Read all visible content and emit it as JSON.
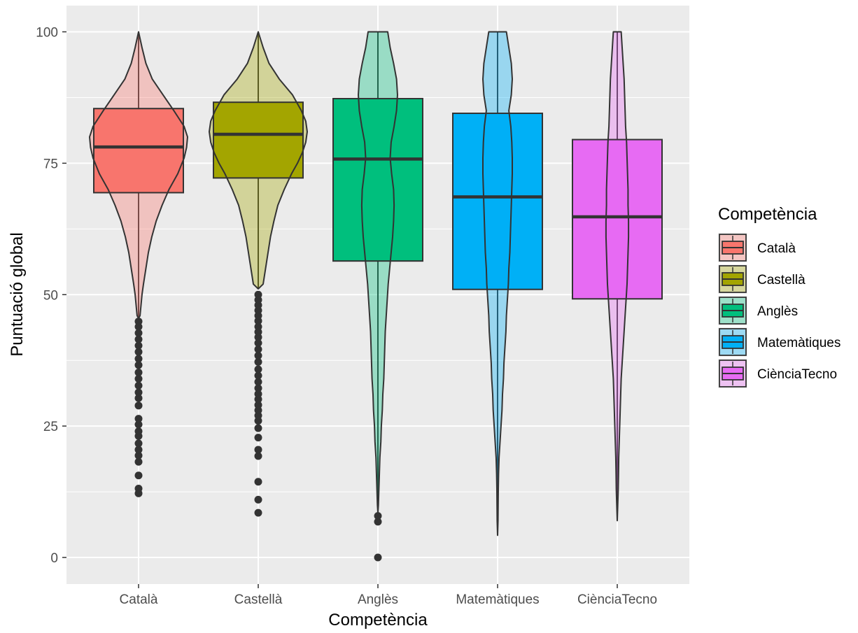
{
  "chart_data": {
    "type": "violin_boxplot",
    "xlabel": "Competència",
    "ylabel": "Puntuació global",
    "ylim": [
      -5,
      105
    ],
    "yticks": [
      0,
      25,
      50,
      75,
      100
    ],
    "ytick_labels": [
      "0",
      "25",
      "50",
      "75",
      "100"
    ],
    "grid": true,
    "legend": {
      "title": "Competència",
      "placement": "right",
      "entries": [
        "Català",
        "Castellà",
        "Anglès",
        "Matemàtiques",
        "CiènciaTecno"
      ]
    },
    "categories": [
      "Català",
      "Castellà",
      "Anglès",
      "Matemàtiques",
      "CiènciaTecno"
    ],
    "series": [
      {
        "name": "Català",
        "color": "#F8766D",
        "box": {
          "q1": 69.4,
          "median": 78.1,
          "q3": 85.4,
          "whisker_low": 45.5,
          "whisker_high": 100
        },
        "outliers": [
          12.2,
          13.1,
          15.6,
          18.2,
          19.4,
          20.5,
          21.7,
          23.1,
          24.0,
          25.3,
          26.4,
          28.9,
          30.3,
          31.4,
          32.7,
          34.0,
          35.2,
          36.6,
          37.8,
          39.1,
          40.3,
          41.5,
          42.7,
          43.9,
          44.9
        ],
        "violin": [
          [
            100,
            0
          ],
          [
            97,
            0.07
          ],
          [
            94,
            0.15
          ],
          [
            91,
            0.28
          ],
          [
            88,
            0.5
          ],
          [
            85,
            0.72
          ],
          [
            82,
            0.93
          ],
          [
            80,
            1.0
          ],
          [
            78,
            0.98
          ],
          [
            76,
            0.93
          ],
          [
            73,
            0.8
          ],
          [
            70,
            0.62
          ],
          [
            67,
            0.48
          ],
          [
            64,
            0.36
          ],
          [
            61,
            0.27
          ],
          [
            58,
            0.2
          ],
          [
            55,
            0.15
          ],
          [
            52,
            0.1
          ],
          [
            50,
            0.07
          ],
          [
            46,
            0.03
          ],
          [
            45.5,
            0
          ]
        ]
      },
      {
        "name": "Castellà",
        "color": "#A3A500",
        "box": {
          "q1": 72.2,
          "median": 80.5,
          "q3": 86.6,
          "whisker_low": 51.1,
          "whisker_high": 100
        },
        "outliers": [
          8.5,
          11.0,
          14.4,
          19.3,
          20.5,
          22.8,
          24.6,
          26.0,
          27.0,
          28.0,
          29.0,
          30.1,
          31.1,
          32.2,
          33.4,
          34.6,
          35.8,
          37.2,
          38.4,
          39.6,
          40.8,
          41.9,
          42.9,
          43.9,
          45.0,
          46.0,
          47.0,
          48.0,
          49.0,
          50.0
        ],
        "violin": [
          [
            100,
            0
          ],
          [
            97,
            0.1
          ],
          [
            94,
            0.22
          ],
          [
            91,
            0.43
          ],
          [
            88,
            0.7
          ],
          [
            85,
            0.88
          ],
          [
            83,
            0.97
          ],
          [
            81,
            1.0
          ],
          [
            79,
            0.97
          ],
          [
            77,
            0.9
          ],
          [
            75,
            0.8
          ],
          [
            73,
            0.68
          ],
          [
            70,
            0.53
          ],
          [
            67,
            0.4
          ],
          [
            64,
            0.32
          ],
          [
            61,
            0.25
          ],
          [
            58,
            0.2
          ],
          [
            55,
            0.15
          ],
          [
            52,
            0.1
          ],
          [
            51.1,
            0
          ]
        ]
      },
      {
        "name": "Anglès",
        "color": "#00BF7D",
        "box": {
          "q1": 56.4,
          "median": 75.8,
          "q3": 87.3,
          "whisker_low": 8.5,
          "whisker_high": 100
        },
        "outliers": [
          0.0,
          6.8,
          7.9
        ],
        "violin": [
          [
            100,
            0.2
          ],
          [
            97,
            0.25
          ],
          [
            94,
            0.32
          ],
          [
            91,
            0.38
          ],
          [
            88,
            0.4
          ],
          [
            85,
            0.38
          ],
          [
            82,
            0.33
          ],
          [
            79,
            0.27
          ],
          [
            76,
            0.25
          ],
          [
            73,
            0.28
          ],
          [
            70,
            0.32
          ],
          [
            67,
            0.33
          ],
          [
            64,
            0.32
          ],
          [
            61,
            0.3
          ],
          [
            58,
            0.27
          ],
          [
            55,
            0.24
          ],
          [
            52,
            0.21
          ],
          [
            49,
            0.19
          ],
          [
            46,
            0.17
          ],
          [
            43,
            0.15
          ],
          [
            40,
            0.14
          ],
          [
            37,
            0.13
          ],
          [
            34,
            0.12
          ],
          [
            31,
            0.1
          ],
          [
            28,
            0.09
          ],
          [
            25,
            0.07
          ],
          [
            22,
            0.06
          ],
          [
            19,
            0.04
          ],
          [
            16,
            0.03
          ],
          [
            13,
            0.02
          ],
          [
            10,
            0.01
          ],
          [
            8.5,
            0
          ]
        ]
      },
      {
        "name": "Matemàtiques",
        "color": "#00B0F6",
        "box": {
          "q1": 51.0,
          "median": 68.6,
          "q3": 84.5,
          "whisker_low": 4.2,
          "whisker_high": 100
        },
        "outliers": [],
        "violin": [
          [
            100,
            0.18
          ],
          [
            97,
            0.23
          ],
          [
            94,
            0.28
          ],
          [
            91,
            0.3
          ],
          [
            88,
            0.28
          ],
          [
            85,
            0.23
          ],
          [
            82,
            0.27
          ],
          [
            79,
            0.29
          ],
          [
            76,
            0.3
          ],
          [
            73,
            0.3
          ],
          [
            70,
            0.29
          ],
          [
            67,
            0.28
          ],
          [
            64,
            0.27
          ],
          [
            61,
            0.26
          ],
          [
            58,
            0.25
          ],
          [
            55,
            0.23
          ],
          [
            52,
            0.22
          ],
          [
            49,
            0.2
          ],
          [
            46,
            0.18
          ],
          [
            43,
            0.17
          ],
          [
            40,
            0.15
          ],
          [
            37,
            0.13
          ],
          [
            34,
            0.12
          ],
          [
            31,
            0.1
          ],
          [
            28,
            0.09
          ],
          [
            25,
            0.07
          ],
          [
            22,
            0.05
          ],
          [
            19,
            0.03
          ],
          [
            16,
            0.02
          ],
          [
            13,
            0.015
          ],
          [
            10,
            0.012
          ],
          [
            7,
            0.008
          ],
          [
            4.2,
            0
          ]
        ]
      },
      {
        "name": "CiènciaTecno",
        "color": "#E76BF3",
        "box": {
          "q1": 49.2,
          "median": 64.8,
          "q3": 79.5,
          "whisker_low": 7.0,
          "whisker_high": 100
        },
        "outliers": [],
        "violin": [
          [
            100,
            0.08
          ],
          [
            97,
            0.1
          ],
          [
            94,
            0.12
          ],
          [
            91,
            0.14
          ],
          [
            88,
            0.15
          ],
          [
            85,
            0.16
          ],
          [
            82,
            0.17
          ],
          [
            79,
            0.19
          ],
          [
            76,
            0.2
          ],
          [
            73,
            0.21
          ],
          [
            70,
            0.22
          ],
          [
            67,
            0.22
          ],
          [
            64,
            0.23
          ],
          [
            61,
            0.23
          ],
          [
            58,
            0.22
          ],
          [
            55,
            0.21
          ],
          [
            52,
            0.2
          ],
          [
            49,
            0.18
          ],
          [
            46,
            0.16
          ],
          [
            43,
            0.14
          ],
          [
            40,
            0.12
          ],
          [
            37,
            0.1
          ],
          [
            34,
            0.08
          ],
          [
            31,
            0.07
          ],
          [
            28,
            0.06
          ],
          [
            25,
            0.05
          ],
          [
            22,
            0.04
          ],
          [
            19,
            0.03
          ],
          [
            16,
            0.025
          ],
          [
            13,
            0.02
          ],
          [
            10,
            0.01
          ],
          [
            7,
            0
          ]
        ]
      }
    ]
  }
}
